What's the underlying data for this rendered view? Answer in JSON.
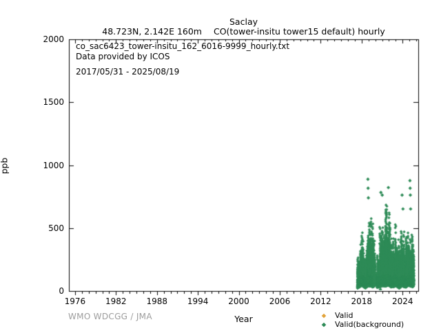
{
  "header": {
    "title": "Saclay",
    "subtitle_left": "48.723N, 2.142E 160m",
    "subtitle_right": "CO(tower-insitu tower15 default) hourly"
  },
  "annotation": {
    "file_name": "co_sac6423_tower-insitu_162_6016-9999_hourly.txt",
    "provider": "Data provided by ICOS",
    "period": "2017/05/31 - 2025/08/19"
  },
  "footer": {
    "attribution": "WMO WDCGG / JMA"
  },
  "chart_data": {
    "type": "scatter",
    "title": "Saclay",
    "station": "Saclay",
    "coordinates": "48.723N, 2.142E 160m",
    "parameter": "CO(tower-insitu tower15 default) hourly",
    "period": "2017/05/31 - 2025/08/19",
    "xlabel": "Year",
    "ylabel": "ppb",
    "xlim": [
      1975.1,
      2026.3
    ],
    "ylim": [
      0,
      2000
    ],
    "xticks": [
      1976,
      1982,
      1988,
      1994,
      2000,
      2006,
      2012,
      2018,
      2024
    ],
    "xminor_step": 1,
    "yticks": [
      0,
      500,
      1000,
      1500,
      2000
    ],
    "grid": false,
    "legend_position": "bottom-right",
    "axis_color": "#000000",
    "series": [
      {
        "name": "Valid",
        "marker": "diamond",
        "color": "#e2a33a",
        "points_visible": false
      },
      {
        "name": "Valid(background)",
        "marker": "diamond",
        "color": "#2e8b57",
        "points_visible": true,
        "time_range": [
          2017.42,
          2025.63
        ],
        "gaps": [
          [
            2019.95,
            2020.3
          ]
        ],
        "envelope": [
          [
            2017.42,
            30,
            260,
            430
          ],
          [
            2017.7,
            40,
            220,
            370
          ],
          [
            2017.95,
            50,
            380,
            690
          ],
          [
            2018.2,
            45,
            300,
            540
          ],
          [
            2018.55,
            30,
            200,
            330
          ],
          [
            2018.95,
            50,
            430,
            740
          ],
          [
            2019.3,
            45,
            360,
            620
          ],
          [
            2019.6,
            40,
            280,
            560
          ],
          [
            2019.93,
            50,
            350,
            600
          ],
          [
            2020.35,
            35,
            230,
            420
          ],
          [
            2020.7,
            40,
            280,
            620
          ],
          [
            2021.0,
            50,
            430,
            780
          ],
          [
            2021.4,
            45,
            400,
            700
          ],
          [
            2021.9,
            55,
            460,
            810
          ],
          [
            2022.3,
            40,
            330,
            600
          ],
          [
            2022.7,
            40,
            300,
            660
          ],
          [
            2023.05,
            50,
            380,
            620
          ],
          [
            2023.5,
            30,
            240,
            430
          ],
          [
            2023.95,
            50,
            350,
            560
          ],
          [
            2024.4,
            35,
            250,
            450
          ],
          [
            2024.9,
            50,
            380,
            600
          ],
          [
            2025.2,
            45,
            340,
            560
          ],
          [
            2025.63,
            40,
            300,
            490
          ]
        ],
        "outliers": [
          [
            2018.92,
            888
          ],
          [
            2018.95,
            817
          ],
          [
            2018.99,
            740
          ],
          [
            2020.82,
            783
          ],
          [
            2021.02,
            762
          ],
          [
            2021.92,
            822
          ],
          [
            2023.93,
            762
          ],
          [
            2024.06,
            652
          ],
          [
            2025.08,
            877
          ],
          [
            2025.11,
            817
          ],
          [
            2025.14,
            762
          ],
          [
            2025.18,
            652
          ],
          [
            2020.75,
            12
          ]
        ]
      }
    ]
  }
}
